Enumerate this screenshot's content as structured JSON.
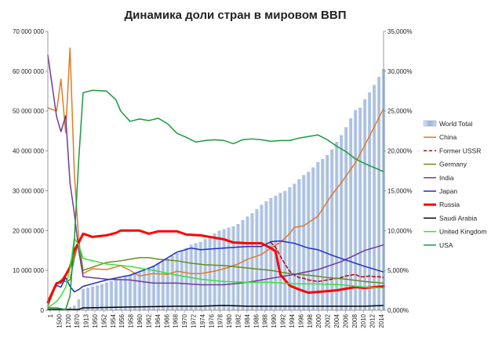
{
  "chart_data": {
    "type": "bar+line",
    "title": "Динамика доли стран в мировом ВВП",
    "x_tick_labels": [
      "1",
      "1500",
      "1700",
      "1870",
      "1913",
      "1950",
      "1952",
      "1954",
      "1956",
      "1958",
      "1960",
      "1962",
      "1964",
      "1966",
      "1968",
      "1970",
      "1972",
      "1974",
      "1976",
      "1978",
      "1980",
      "1982",
      "1984",
      "1986",
      "1988",
      "1990",
      "1992",
      "1994",
      "1996",
      "1998",
      "2000",
      "2002",
      "2004",
      "2006",
      "2008",
      "2010",
      "2012",
      "2014"
    ],
    "y_left": {
      "ticks": [
        "0",
        "10 000 000",
        "20 000 000",
        "30 000 000",
        "40 000 000",
        "50 000 000",
        "60 000 000",
        "70 000 000"
      ],
      "min": 0,
      "max": 70000000
    },
    "y_right": {
      "ticks": [
        "0,000%",
        "5,000%",
        "10,000%",
        "15,000%",
        "20,000%",
        "25,000%",
        "30,000%",
        "35,000%"
      ],
      "min": 0,
      "max": 35
    },
    "bar_series": {
      "name": "World Total",
      "color": "#9db6dc",
      "x": [
        1,
        1500,
        1600,
        1700,
        1820,
        1870,
        1913,
        1950,
        1951,
        1952,
        1953,
        1954,
        1955,
        1956,
        1957,
        1958,
        1959,
        1960,
        1961,
        1962,
        1963,
        1964,
        1965,
        1966,
        1967,
        1968,
        1969,
        1970,
        1971,
        1972,
        1973,
        1974,
        1975,
        1976,
        1977,
        1978,
        1979,
        1980,
        1981,
        1982,
        1983,
        1984,
        1985,
        1986,
        1987,
        1988,
        1989,
        1990,
        1991,
        1992,
        1993,
        1994,
        1995,
        1996,
        1997,
        1998,
        1999,
        2000,
        2001,
        2002,
        2003,
        2004,
        2005,
        2006,
        2007,
        2008,
        2009,
        2010,
        2011,
        2012,
        2013,
        2014
      ],
      "values": [
        180000,
        250000,
        330000,
        370000,
        700000,
        1100000,
        2700000,
        5300000,
        5600000,
        5900000,
        6200000,
        6500000,
        6900000,
        7300000,
        7600000,
        7900000,
        8300000,
        8700000,
        9100000,
        9500000,
        10000000,
        10600000,
        11200000,
        11800000,
        12300000,
        12900000,
        13600000,
        14300000,
        14900000,
        15600000,
        16400000,
        16800000,
        17100000,
        17800000,
        18500000,
        19200000,
        19900000,
        20300000,
        20700000,
        21000000,
        21600000,
        22600000,
        23500000,
        24300000,
        25300000,
        26400000,
        27300000,
        28100000,
        28700000,
        29400000,
        29900000,
        30800000,
        31700000,
        32800000,
        33900000,
        34700000,
        35800000,
        37100000,
        37900000,
        38900000,
        40300000,
        42200000,
        43900000,
        45900000,
        48100000,
        50200000,
        50800000,
        52900000,
        54600000,
        56500000,
        58500000,
        60500000
      ]
    },
    "line_series": [
      {
        "name": "China",
        "color": "#e07b25",
        "width": 1.5,
        "dash": "",
        "x": [
          1,
          1500,
          1600,
          1700,
          1820,
          1870,
          1913,
          1950,
          1952,
          1955,
          1958,
          1960,
          1962,
          1965,
          1968,
          1970,
          1973,
          1975,
          1978,
          1980,
          1983,
          1985,
          1988,
          1990,
          1992,
          1994,
          1995,
          1997,
          2000,
          2003,
          2005,
          2008,
          2010,
          2012,
          2014
        ],
        "values": [
          25.4,
          25.0,
          29.0,
          22.3,
          32.9,
          17.1,
          8.8,
          4.6,
          5.2,
          5.1,
          5.6,
          5.0,
          4.3,
          4.6,
          4.5,
          4.9,
          4.6,
          4.6,
          4.9,
          5.2,
          5.8,
          6.4,
          7.0,
          7.8,
          8.5,
          9.6,
          10.4,
          10.6,
          11.8,
          14.5,
          16.0,
          18.5,
          20.7,
          23.0,
          25.3
        ]
      },
      {
        "name": "Former USSR",
        "color": "#c00000",
        "width": 1.5,
        "dash": "4,3",
        "x": [
          1990,
          1991,
          1992,
          1993,
          1994,
          1995,
          1996,
          1997,
          1998,
          1999,
          2000,
          2001,
          2002,
          2003,
          2004,
          2005,
          2006,
          2007,
          2008,
          2009,
          2010,
          2011,
          2012,
          2013,
          2014
        ],
        "values": [
          8.5,
          7.9,
          6.8,
          5.8,
          4.9,
          4.4,
          4.1,
          4.0,
          3.8,
          3.7,
          3.6,
          3.7,
          3.8,
          3.9,
          4.0,
          4.1,
          4.3,
          4.4,
          4.5,
          4.2,
          4.2,
          4.3,
          4.2,
          4.2,
          4.1
        ]
      },
      {
        "name": "Germany",
        "color": "#6a8a1d",
        "width": 1.5,
        "dash": "",
        "x": [
          1,
          1500,
          1600,
          1700,
          1820,
          1870,
          1913,
          1950,
          1952,
          1955,
          1958,
          1960,
          1962,
          1964,
          1966,
          1968,
          1970,
          1973,
          1976,
          1980,
          1985,
          1990,
          1994,
          1998,
          2002,
          2006,
          2010,
          2014
        ],
        "values": [
          0.5,
          3.3,
          3.8,
          3.6,
          3.8,
          6.5,
          8.7,
          5.0,
          5.4,
          6.0,
          6.2,
          6.4,
          6.6,
          6.6,
          6.4,
          6.3,
          6.2,
          5.9,
          5.7,
          5.6,
          5.3,
          5.0,
          4.6,
          4.4,
          4.1,
          3.9,
          3.6,
          3.4
        ]
      },
      {
        "name": "India",
        "color": "#6e3b9a",
        "width": 1.5,
        "dash": "",
        "x": [
          1,
          1500,
          1600,
          1700,
          1820,
          1870,
          1913,
          1950,
          1955,
          1960,
          1965,
          1970,
          1975,
          1980,
          1985,
          1990,
          1995,
          2000,
          2005,
          2010,
          2014
        ],
        "values": [
          32.0,
          24.3,
          22.4,
          24.4,
          16.0,
          12.1,
          7.5,
          4.2,
          3.9,
          3.8,
          3.4,
          3.4,
          3.2,
          3.2,
          3.5,
          4.0,
          4.5,
          5.1,
          6.1,
          7.5,
          8.2
        ]
      },
      {
        "name": "Japan",
        "color": "#1f2fc6",
        "width": 1.5,
        "dash": "",
        "x": [
          1,
          1500,
          1600,
          1700,
          1820,
          1870,
          1913,
          1950,
          1955,
          1960,
          1965,
          1970,
          1973,
          1975,
          1980,
          1985,
          1988,
          1990,
          1992,
          1995,
          1998,
          2000,
          2003,
          2006,
          2010,
          2014
        ],
        "values": [
          1.2,
          3.1,
          2.9,
          4.1,
          3.0,
          2.3,
          2.6,
          3.0,
          3.8,
          4.4,
          5.5,
          7.3,
          7.8,
          7.6,
          7.8,
          8.0,
          8.0,
          8.6,
          8.7,
          8.4,
          7.8,
          7.6,
          6.9,
          6.3,
          5.5,
          4.8
        ]
      },
      {
        "name": "Russia",
        "color": "#ff0000",
        "width": 3,
        "dash": "",
        "x": [
          1,
          1500,
          1600,
          1700,
          1820,
          1870,
          1913,
          1950,
          1952,
          1955,
          1957,
          1958,
          1960,
          1962,
          1964,
          1966,
          1968,
          1970,
          1972,
          1975,
          1978,
          1980,
          1982,
          1985,
          1988,
          1990,
          1991,
          1992,
          1994,
          1996,
          1998,
          2000,
          2002,
          2004,
          2006,
          2008,
          2010,
          2012,
          2014
        ],
        "values": [
          1.0,
          3.4,
          3.5,
          4.4,
          5.4,
          7.5,
          8.5,
          9.6,
          9.2,
          9.4,
          9.7,
          10.0,
          10.0,
          10.0,
          9.6,
          9.9,
          9.9,
          9.9,
          9.5,
          9.4,
          9.1,
          8.9,
          8.5,
          8.4,
          8.4,
          7.8,
          7.4,
          4.5,
          3.1,
          2.6,
          2.2,
          2.3,
          2.4,
          2.5,
          2.7,
          2.9,
          2.8,
          2.9,
          3.0
        ]
      },
      {
        "name": "Saudi Arabia",
        "color": "#000000",
        "width": 1.5,
        "dash": "",
        "x": [
          1,
          1870,
          1913,
          1950,
          1960,
          1970,
          1975,
          1980,
          1985,
          1990,
          1995,
          2000,
          2005,
          2010,
          2014
        ],
        "values": [
          0.1,
          0.1,
          0.1,
          0.3,
          0.4,
          0.5,
          0.5,
          0.6,
          0.5,
          0.5,
          0.5,
          0.5,
          0.5,
          0.5,
          0.6
        ]
      },
      {
        "name": "United Kingdom",
        "color": "#35e235",
        "width": 1.5,
        "dash": "",
        "x": [
          1,
          1500,
          1600,
          1700,
          1820,
          1870,
          1913,
          1950,
          1955,
          1960,
          1965,
          1970,
          1975,
          1980,
          1985,
          1990,
          1995,
          2000,
          2005,
          2010,
          2014
        ],
        "values": [
          0.3,
          1.1,
          1.8,
          2.9,
          5.2,
          9.0,
          8.2,
          6.5,
          5.8,
          5.5,
          5.0,
          4.4,
          3.9,
          3.6,
          3.5,
          3.5,
          3.3,
          3.3,
          3.2,
          2.9,
          2.8
        ]
      },
      {
        "name": "USA",
        "color": "#1a9a3a",
        "width": 1.5,
        "dash": "",
        "x": [
          1,
          1500,
          1600,
          1700,
          1820,
          1870,
          1913,
          1950,
          1952,
          1955,
          1957,
          1958,
          1960,
          1962,
          1964,
          1966,
          1968,
          1970,
          1972,
          1974,
          1976,
          1978,
          1980,
          1982,
          1984,
          1986,
          1988,
          1990,
          1992,
          1994,
          1996,
          1998,
          2000,
          2002,
          2004,
          2006,
          2008,
          2010,
          2012,
          2014
        ],
        "values": [
          0.3,
          0.3,
          0.2,
          0.1,
          1.8,
          8.9,
          18.9,
          27.3,
          27.6,
          27.5,
          26.4,
          25.0,
          23.7,
          24.0,
          23.8,
          24.1,
          23.4,
          22.2,
          21.7,
          21.1,
          21.3,
          21.4,
          21.3,
          20.9,
          21.4,
          21.5,
          21.4,
          21.2,
          21.3,
          21.3,
          21.6,
          21.8,
          22.0,
          21.4,
          20.6,
          19.9,
          19.0,
          18.4,
          17.9,
          17.4
        ]
      }
    ],
    "legend": {
      "position": "right",
      "items": [
        {
          "name": "World Total",
          "kind": "bar",
          "color": "#9db6dc",
          "dash": "",
          "width": 1.5
        },
        {
          "name": "China",
          "kind": "line",
          "color": "#e07b25",
          "dash": "",
          "width": 1.5
        },
        {
          "name": "Former USSR",
          "kind": "line",
          "color": "#c00000",
          "dash": "4,3",
          "width": 1.5
        },
        {
          "name": "Germany",
          "kind": "line",
          "color": "#6a8a1d",
          "dash": "",
          "width": 1.5
        },
        {
          "name": "India",
          "kind": "line",
          "color": "#6e3b9a",
          "dash": "",
          "width": 1.5
        },
        {
          "name": "Japan",
          "kind": "line",
          "color": "#1f2fc6",
          "dash": "",
          "width": 1.5
        },
        {
          "name": "Russia",
          "kind": "line",
          "color": "#ff0000",
          "dash": "",
          "width": 3
        },
        {
          "name": "Saudi Arabia",
          "kind": "line",
          "color": "#000000",
          "dash": "",
          "width": 1.5
        },
        {
          "name": "United Kingdom",
          "kind": "line",
          "color": "#35e235",
          "dash": "",
          "width": 1.5
        },
        {
          "name": "USA",
          "kind": "line",
          "color": "#1a9a3a",
          "dash": "",
          "width": 1.5
        }
      ]
    },
    "grid": false
  }
}
